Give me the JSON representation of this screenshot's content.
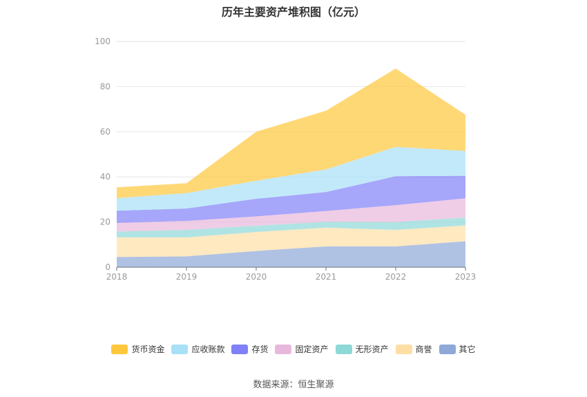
{
  "chart_data": {
    "type": "area",
    "stacked": true,
    "title": "历年主要资产堆积图（亿元）",
    "xlabel": "",
    "ylabel": "",
    "x": [
      "2018",
      "2019",
      "2020",
      "2021",
      "2022",
      "2023"
    ],
    "ylim": [
      0,
      100
    ],
    "yticks": [
      0,
      20,
      40,
      60,
      80,
      100
    ],
    "grid": true,
    "legend_position": "bottom",
    "series": [
      {
        "name": "其它",
        "color": "#8fa8d8",
        "values": [
          4.5,
          4.8,
          7.2,
          9.2,
          9.2,
          11.5
        ]
      },
      {
        "name": "商誉",
        "color": "#fddfa6",
        "values": [
          8.7,
          8.4,
          8.4,
          8.3,
          7.3,
          7.0
        ]
      },
      {
        "name": "无形资产",
        "color": "#8fd8d8",
        "values": [
          2.6,
          3.3,
          2.8,
          2.6,
          3.5,
          3.5
        ]
      },
      {
        "name": "固定资产",
        "color": "#e8b8dc",
        "values": [
          3.8,
          4.0,
          4.1,
          4.8,
          7.5,
          8.5
        ]
      },
      {
        "name": "存货",
        "color": "#8080f8",
        "values": [
          5.4,
          5.5,
          7.8,
          8.4,
          12.8,
          10.0
        ]
      },
      {
        "name": "应收账款",
        "color": "#a8e0f8",
        "values": [
          5.6,
          6.8,
          8.0,
          10.0,
          13.0,
          11.0
        ]
      },
      {
        "name": "货币资金",
        "color": "#ffc83c",
        "values": [
          4.8,
          4.4,
          21.7,
          26.0,
          34.7,
          16.0
        ]
      }
    ],
    "legend_order": [
      "货币资金",
      "应收账款",
      "存货",
      "固定资产",
      "无形资产",
      "商誉",
      "其它"
    ]
  },
  "source": "数据来源：恒生聚源"
}
